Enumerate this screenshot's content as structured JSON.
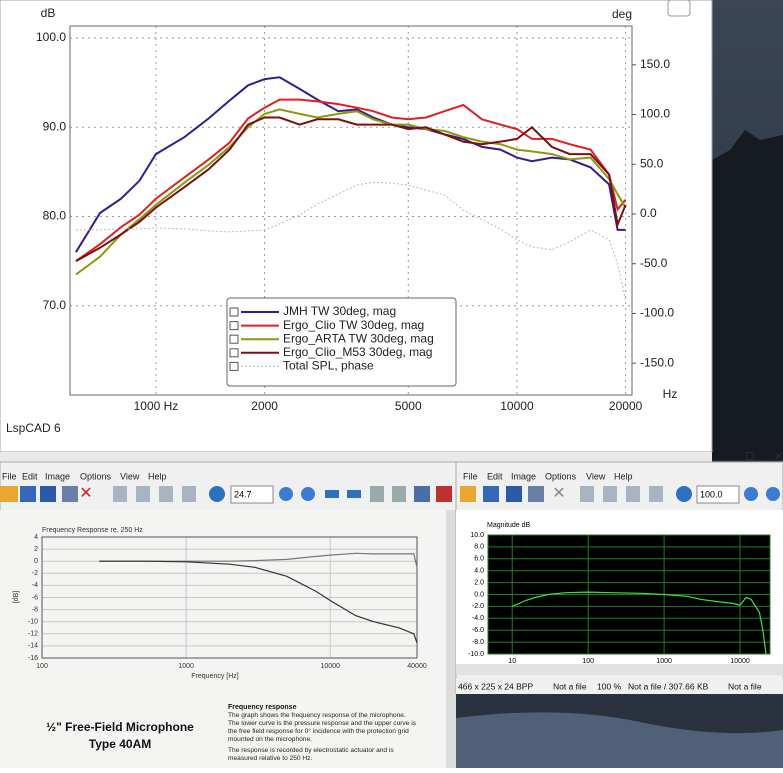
{
  "chart_data": [
    {
      "type": "line",
      "xscale": "log",
      "grid": true,
      "legend": "bottom-center",
      "xlabel": "Hz",
      "ylabel": "dB",
      "y2label": "deg",
      "x": [
        600,
        700,
        800,
        900,
        1000,
        1200,
        1400,
        1600,
        1800,
        2000,
        2200,
        2500,
        2800,
        3200,
        3600,
        4000,
        4500,
        5000,
        5600,
        6300,
        7100,
        8000,
        9000,
        10000,
        11000,
        12500,
        14000,
        16000,
        18000,
        19000,
        20000
      ],
      "xlim": [
        578,
        20830
      ],
      "xticks": [
        {
          "value": 1000,
          "label": "1000 Hz"
        },
        2000,
        5000,
        10000,
        20000
      ],
      "ylim": [
        60,
        101.35
      ],
      "yticks": [
        {
          "value": 100,
          "label": "100.0"
        },
        {
          "value": 90,
          "label": "90.0"
        },
        {
          "value": 80,
          "label": "80.0"
        },
        {
          "value": 70,
          "label": "70.0"
        }
      ],
      "y2lim": [
        -182,
        189
      ],
      "y2ticks": [
        {
          "value": 150,
          "label": "150.0"
        },
        {
          "value": 100,
          "label": "100.0"
        },
        {
          "value": 50,
          "label": "50.0"
        },
        {
          "value": 0,
          "label": "0.0"
        },
        {
          "value": -50,
          "label": "-50.0"
        },
        {
          "value": -100,
          "label": "-100.0"
        },
        {
          "value": -150,
          "label": "-150.0"
        }
      ],
      "series": [
        {
          "name": "JMH TW 30deg, mag",
          "color": "#3a1a8c",
          "values": [
            76,
            80.4,
            82,
            84,
            87,
            88.9,
            91,
            93,
            94.7,
            95.4,
            95.6,
            94.3,
            93.1,
            91.8,
            92,
            91.1,
            90.3,
            90,
            89.8,
            89.2,
            88.7,
            87.8,
            87.5,
            86.6,
            86.2,
            86.6,
            86.4,
            85.5,
            83.6,
            78.5,
            78.5
          ]
        },
        {
          "name": "Ergo_Clio TW 30deg, mag",
          "color": "#e02020",
          "values": [
            75,
            76.9,
            78.8,
            80.2,
            82,
            84.4,
            86.4,
            88.3,
            91,
            92.2,
            93.1,
            93.1,
            92.9,
            92.6,
            92.2,
            91.8,
            91.1,
            90.9,
            91.1,
            91.8,
            92.5,
            90.9,
            90.3,
            89.8,
            88.7,
            88.7,
            88.1,
            87.5,
            84.7,
            80.8,
            81.9
          ]
        },
        {
          "name": "Ergo_ARTA TW 30deg, mag",
          "color": "#8a9a10",
          "values": [
            73.5,
            75.5,
            78,
            79.7,
            81.3,
            83.8,
            85.8,
            87.8,
            90,
            91.5,
            92,
            91.5,
            91.1,
            91.5,
            91.8,
            90.9,
            90.3,
            90.3,
            89.8,
            89.6,
            88.9,
            88.4,
            88.1,
            87.5,
            87.3,
            87,
            86.4,
            86.6,
            84.2,
            82.5,
            81
          ]
        },
        {
          "name": "Ergo_Clio_M53 30deg, mag",
          "color": "#7a1010",
          "values": [
            75,
            76.5,
            78,
            79.4,
            81,
            83.3,
            85.3,
            87.5,
            90.3,
            91.1,
            91.1,
            90.3,
            90.9,
            90.9,
            90.3,
            90.3,
            90.3,
            89.8,
            90,
            89.2,
            88.4,
            88.1,
            88.4,
            88.7,
            90,
            87.8,
            87,
            87,
            84.7,
            79.1,
            81.3
          ]
        },
        {
          "name": "Total SPL, phase",
          "color": "#bbbbbb",
          "style": "dotted",
          "axis": "y2",
          "values": [
            -16,
            -16,
            -15,
            -15,
            -14,
            -15,
            -17,
            -18,
            -17,
            -16,
            -10,
            -1,
            10,
            20,
            29,
            32,
            31,
            29,
            24,
            19,
            4,
            -6,
            -15,
            -26,
            -33,
            -36,
            -28,
            -16,
            -26,
            -50,
            -87
          ]
        }
      ]
    },
    {
      "type": "line",
      "xscale": "log",
      "grid": true,
      "title": "Frequency Response re. 250 Hz",
      "xlabel": "Frequency [Hz]",
      "ylabel": "[dB]",
      "x": [
        250,
        500,
        1000,
        2000,
        3000,
        5000,
        8000,
        10000,
        15000,
        20000,
        30000,
        38000,
        40000
      ],
      "xlim": [
        100,
        40000
      ],
      "xticks": [
        100,
        1000,
        10000,
        40000
      ],
      "ylim": [
        -16,
        4
      ],
      "yticks": [
        4,
        2,
        0,
        -2,
        -4,
        -6,
        -8,
        -10,
        -12,
        -14,
        -16
      ],
      "series": [
        {
          "color": "#777777",
          "values": [
            0,
            0,
            0,
            0,
            0.1,
            0.3,
            0.8,
            1,
            1.3,
            1.2,
            1.2,
            1.2,
            -1
          ]
        },
        {
          "color": "#333333",
          "values": [
            0,
            0,
            -0.1,
            -0.5,
            -1,
            -2.5,
            -5,
            -6.5,
            -9,
            -10,
            -11,
            -12,
            -13.5
          ]
        }
      ]
    },
    {
      "type": "line",
      "xscale": "log",
      "grid": true,
      "title": "Magnitude dB",
      "x": [
        10,
        15,
        20,
        30,
        50,
        100,
        200,
        500,
        1000,
        2000,
        3000,
        5000,
        8000,
        10000,
        12000,
        14000,
        16000,
        18000,
        20000,
        22000
      ],
      "xlim": [
        4.8,
        24800
      ],
      "xticks": [
        10,
        100,
        1000,
        10000
      ],
      "ylim": [
        -10,
        10
      ],
      "yticks": [
        {
          "value": 10,
          "label": "10.0"
        },
        {
          "value": 8,
          "label": "8.0"
        },
        {
          "value": 6,
          "label": "6.0"
        },
        {
          "value": 4,
          "label": "4.0"
        },
        {
          "value": 2,
          "label": "2.0"
        },
        {
          "value": 0,
          "label": "0.0"
        },
        {
          "value": -2,
          "label": "-2.0"
        },
        {
          "value": -4,
          "label": "-4.0"
        },
        {
          "value": -6,
          "label": "-6.0"
        },
        {
          "value": -8,
          "label": "-8.0"
        },
        {
          "value": -10,
          "label": "-10.0"
        }
      ],
      "series": [
        {
          "color": "#40e040",
          "values": [
            -2,
            -1,
            -0.5,
            0,
            0.3,
            0.4,
            0.3,
            0.2,
            0,
            -0.3,
            -0.8,
            -1.2,
            -1.5,
            -1.8,
            -0.5,
            -0.8,
            -2,
            -3,
            -6,
            -10
          ]
        }
      ]
    }
  ],
  "ui": {
    "app_name": "LspCAD 6",
    "left_menu": [
      "File",
      "Edit",
      "Image",
      "Options",
      "View",
      "Help"
    ],
    "right_menu": [
      "File",
      "Edit",
      "Image",
      "Options",
      "View",
      "Help"
    ],
    "left_zoom": "24.7",
    "right_zoom": "100.0",
    "doc": {
      "heading": [
        "½\" Free-Field Microphone",
        "Type 40AM"
      ],
      "section": "Frequency response",
      "text": [
        "The graph shows the frequency response of the microphone.",
        "The lower curve is the pressure response and the upper curve is",
        "the free field response for 0° incidence with the protection grid",
        "mounted on the microphone.",
        "The response is recorded by electrostatic actuator and is",
        "measured relative to 250 Hz."
      ]
    },
    "status": [
      "466 x 225 x 24 BPP",
      "Not a file",
      "100 %",
      "Not a file / 307.66 KB",
      "Not a file"
    ]
  }
}
